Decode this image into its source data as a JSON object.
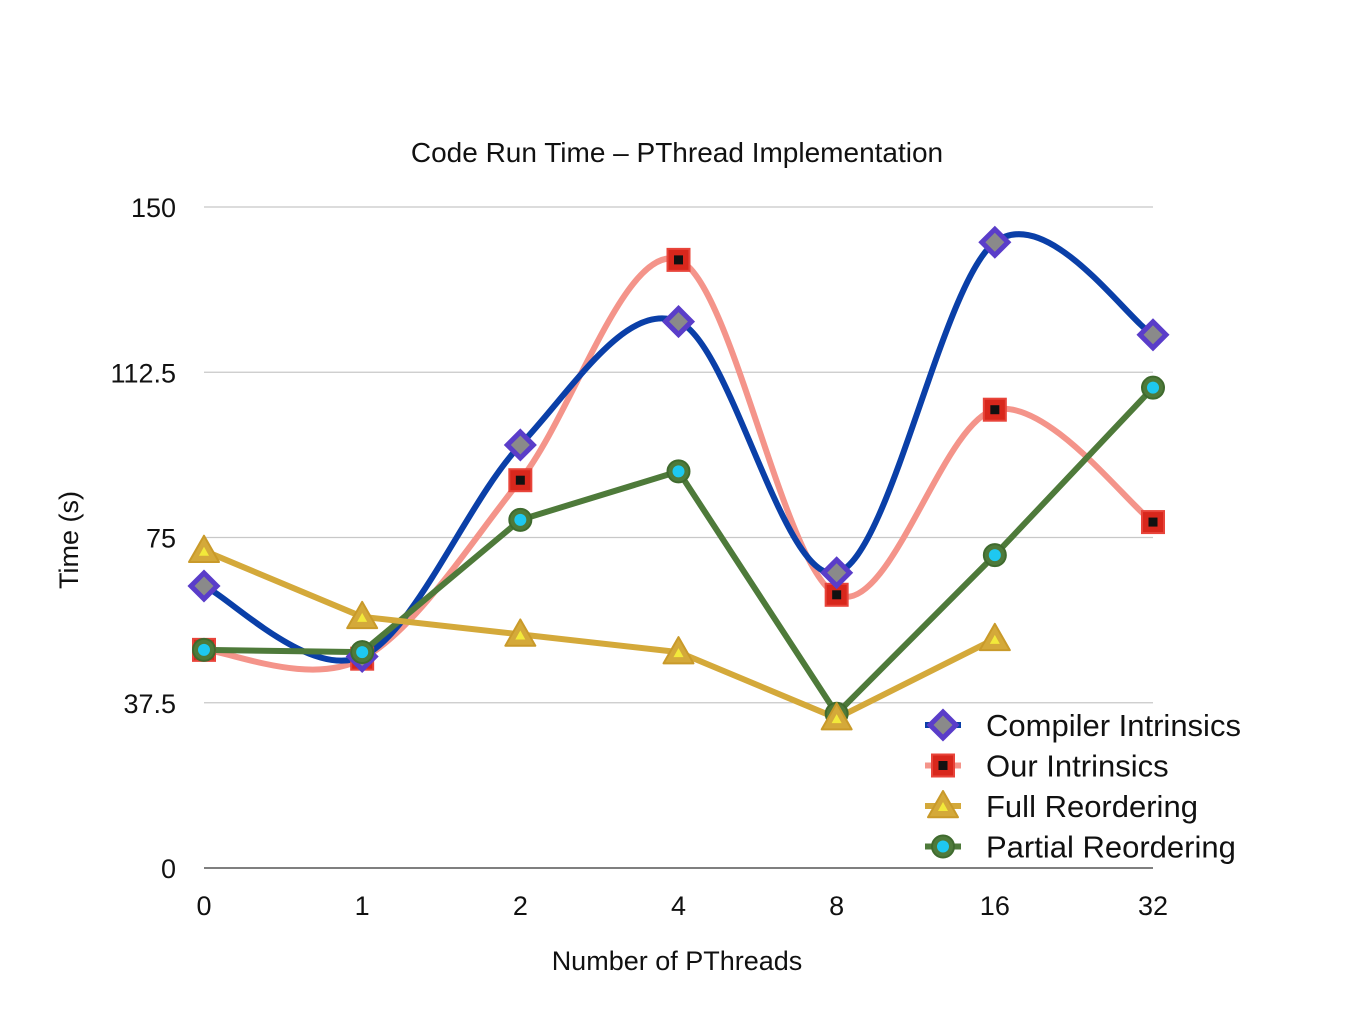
{
  "chart_data": {
    "type": "line",
    "title": "Code Run Time – PThread Implementation",
    "xlabel": "Number of PThreads",
    "ylabel": "Time (s)",
    "categories": [
      "0",
      "1",
      "2",
      "4",
      "8",
      "16",
      "32"
    ],
    "ylim": [
      0,
      150
    ],
    "yticks": [
      "0",
      "37.5",
      "75",
      "112.5",
      "150"
    ],
    "ytick_values": [
      0,
      37.5,
      75,
      112.5,
      150
    ],
    "grid": "horizontal",
    "legend_position": "bottom-right",
    "series": [
      {
        "name": "Our Intrinsics",
        "line_color": "#f4948a",
        "marker": "square",
        "marker_fill": "#d8271c",
        "marker_center": "#111111",
        "smooth": true,
        "values": [
          49.5,
          47.5,
          88,
          138,
          62,
          104,
          78.5
        ]
      },
      {
        "name": "Compiler Intrinsics",
        "line_color": "#0a3fa8",
        "marker": "diamond",
        "marker_fill": "#5a3dc9",
        "marker_center": "#8a8a8a",
        "smooth": true,
        "values": [
          64,
          48,
          96,
          124,
          67,
          142,
          121
        ]
      },
      {
        "name": "Partial Reordering",
        "line_color": "#4e7a3a",
        "marker": "circle",
        "marker_fill": "#4e7a3a",
        "marker_center": "#1ec8f0",
        "smooth": false,
        "values": [
          49.5,
          49,
          79,
          90,
          35,
          71,
          109
        ]
      },
      {
        "name": "Full Reordering",
        "line_color": "#d4a93a",
        "marker": "triangle",
        "marker_fill": "#d4a93a",
        "marker_center": "#f2e93a",
        "smooth": false,
        "values": [
          72,
          57,
          53,
          49,
          34,
          52,
          null
        ]
      }
    ],
    "legend_order": [
      "Compiler Intrinsics",
      "Our Intrinsics",
      "Full Reordering",
      "Partial Reordering"
    ]
  }
}
